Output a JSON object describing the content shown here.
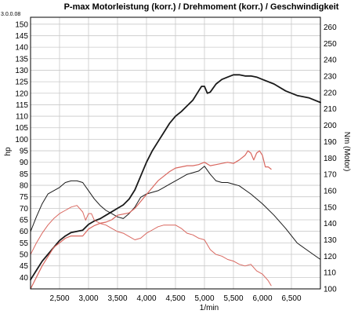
{
  "chart_data": {
    "type": "line",
    "title": "P-max Motorleistung (korr.) / Drehmoment (korr.) / Geschwindigkeit",
    "corner_label": "3.0.0.08",
    "xlabel": "1/min",
    "ylabel_left": "hp",
    "ylabel_right": "Nm (Motor)",
    "xlim": [
      2000,
      7000
    ],
    "ylim_left": [
      35,
      153
    ],
    "ylim_right": [
      100,
      266
    ],
    "x_ticks": [
      2500,
      3000,
      3500,
      4000,
      4500,
      5000,
      5500,
      6000,
      6500
    ],
    "x_tick_labels": [
      "2,500",
      "3,000",
      "3,500",
      "4,000",
      "4,500",
      "5,000",
      "5,500",
      "6,000",
      "6,500"
    ],
    "y_left_ticks": [
      40,
      45,
      50,
      55,
      60,
      65,
      70,
      75,
      80,
      85,
      90,
      95,
      100,
      105,
      110,
      115,
      120,
      125,
      130,
      135,
      140,
      145,
      150
    ],
    "y_right_ticks": [
      100,
      110,
      120,
      130,
      140,
      150,
      160,
      170,
      180,
      190,
      200,
      210,
      220,
      230,
      240,
      250,
      260
    ],
    "grid": true,
    "colors": {
      "black": "#1a1a1a",
      "red": "#d9675f"
    },
    "series": [
      {
        "axis": "left",
        "color": "#1a1a1a",
        "width": 1.8,
        "x": [
          2000,
          2100,
          2200,
          2300,
          2400,
          2500,
          2600,
          2700,
          2800,
          2900,
          3000,
          3100,
          3200,
          3300,
          3400,
          3500,
          3600,
          3700,
          3800,
          3900,
          4000,
          4100,
          4200,
          4300,
          4400,
          4500,
          4600,
          4700,
          4800,
          4900,
          4950,
          5000,
          5050,
          5100,
          5200,
          5300,
          5400,
          5500,
          5600,
          5700,
          5800,
          5900,
          6000,
          6200,
          6400,
          6600,
          6800,
          7000
        ],
        "values": [
          39,
          43,
          47,
          50,
          53,
          56,
          58,
          59.5,
          60,
          60.5,
          63,
          64.5,
          65.5,
          67,
          68.5,
          70,
          71.5,
          74,
          78,
          84,
          90,
          95,
          99,
          103,
          107,
          110,
          112,
          114.5,
          117,
          121,
          123,
          123,
          120,
          120.5,
          124,
          126,
          127,
          128,
          128,
          127.5,
          127.5,
          127,
          126,
          124,
          121,
          119,
          118,
          116
        ]
      },
      {
        "axis": "right",
        "color": "#1a1a1a",
        "width": 1.0,
        "x": [
          2000,
          2100,
          2200,
          2300,
          2400,
          2500,
          2600,
          2700,
          2800,
          2900,
          3000,
          3100,
          3200,
          3300,
          3400,
          3500,
          3600,
          3700,
          3800,
          3900,
          4000,
          4100,
          4200,
          4300,
          4400,
          4500,
          4600,
          4700,
          4800,
          4900,
          5000,
          5100,
          5200,
          5300,
          5400,
          5500,
          5600,
          5800,
          6000,
          6200,
          6400,
          6600,
          6800,
          7000
        ],
        "values": [
          135,
          144,
          152,
          158,
          160,
          162,
          165,
          166,
          166,
          165,
          160,
          155,
          151,
          148,
          146,
          144,
          143,
          146,
          150,
          156,
          158,
          159,
          160,
          162,
          164,
          166,
          168,
          170,
          171,
          172,
          175,
          170,
          166,
          165,
          165,
          164,
          163,
          158,
          152,
          145,
          137,
          128,
          123,
          118
        ]
      },
      {
        "axis": "left",
        "color": "#d9675f",
        "width": 1.2,
        "x": [
          2000,
          2100,
          2200,
          2300,
          2400,
          2500,
          2600,
          2700,
          2800,
          2900,
          3000,
          3100,
          3200,
          3300,
          3400,
          3500,
          3600,
          3700,
          3800,
          3900,
          4000,
          4100,
          4200,
          4300,
          4400,
          4500,
          4600,
          4700,
          4800,
          4900,
          5000,
          5100,
          5200,
          5300,
          5400,
          5500,
          5600,
          5700,
          5750,
          5800,
          5850,
          5900,
          5950,
          6000,
          6050,
          6100,
          6150
        ],
        "values": [
          35,
          40,
          45,
          49,
          53,
          55,
          57,
          58,
          58,
          58,
          61,
          62.5,
          63.5,
          64,
          65,
          67,
          67.5,
          68,
          70,
          73,
          76,
          79,
          82,
          84,
          86,
          87.5,
          88,
          88.5,
          88.5,
          89,
          90,
          88.5,
          89,
          89.5,
          90,
          89.5,
          91,
          93,
          95,
          94,
          91,
          94,
          95,
          93,
          88,
          88,
          87
        ]
      },
      {
        "axis": "right",
        "color": "#d9675f",
        "width": 1.0,
        "x": [
          2000,
          2100,
          2200,
          2300,
          2400,
          2500,
          2600,
          2700,
          2800,
          2900,
          2950,
          3000,
          3050,
          3100,
          3200,
          3300,
          3400,
          3500,
          3600,
          3700,
          3800,
          3900,
          4000,
          4100,
          4200,
          4300,
          4400,
          4500,
          4600,
          4700,
          4800,
          4900,
          5000,
          5100,
          5200,
          5300,
          5400,
          5500,
          5600,
          5700,
          5800,
          5900,
          6000,
          6100,
          6150
        ],
        "values": [
          121,
          128,
          134,
          139,
          143,
          146,
          148,
          150,
          151,
          147,
          142,
          146,
          146,
          142,
          140,
          139,
          137,
          135,
          134,
          132,
          130,
          131,
          134,
          136,
          138,
          139,
          139,
          139,
          137,
          134,
          133,
          131,
          130,
          124,
          121,
          120,
          118,
          117,
          115,
          114,
          115,
          111,
          109,
          105,
          102
        ]
      }
    ]
  }
}
